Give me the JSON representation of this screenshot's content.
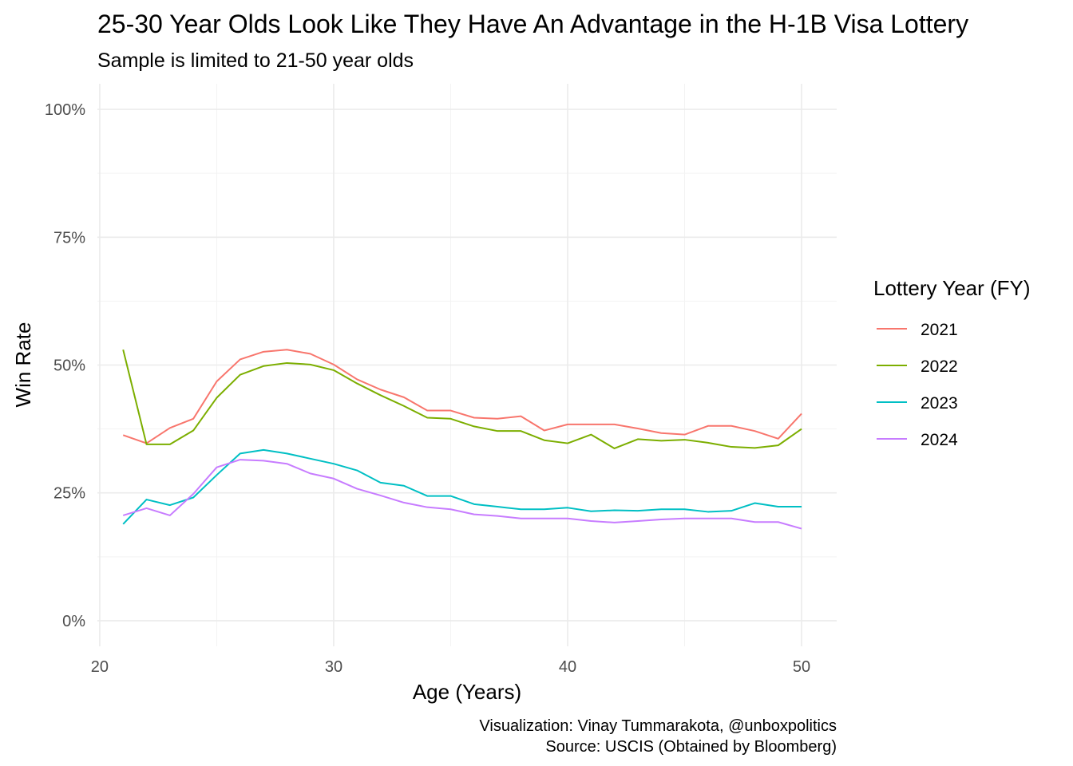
{
  "chart_data": {
    "type": "line",
    "title": "25-30 Year Olds Look Like They Have An Advantage in the H-1B Visa Lottery",
    "subtitle": "Sample is limited to 21-50 year olds",
    "xlabel": "Age (Years)",
    "ylabel": "Win Rate",
    "xlim": [
      19.9,
      51.5
    ],
    "ylim": [
      -0.05,
      1.05
    ],
    "x_ticks": [
      20,
      30,
      40,
      50
    ],
    "x_tick_labels": [
      "20",
      "30",
      "40",
      "50"
    ],
    "y_ticks": [
      0,
      0.25,
      0.5,
      0.75,
      1.0
    ],
    "y_tick_labels": [
      "0%",
      "25%",
      "50%",
      "75%",
      "100%"
    ],
    "grid": true,
    "legend": {
      "title": "Lottery Year (FY)",
      "placement": "right"
    },
    "x": [
      21,
      22,
      23,
      24,
      25,
      26,
      27,
      28,
      29,
      30,
      31,
      32,
      33,
      34,
      35,
      36,
      37,
      38,
      39,
      40,
      41,
      42,
      43,
      44,
      45,
      46,
      47,
      48,
      49,
      50
    ],
    "series": [
      {
        "name": "2021",
        "color": "#F8766D",
        "values": [
          0.363,
          0.347,
          0.377,
          0.395,
          0.468,
          0.511,
          0.526,
          0.53,
          0.522,
          0.501,
          0.472,
          0.452,
          0.437,
          0.411,
          0.411,
          0.397,
          0.395,
          0.4,
          0.372,
          0.384,
          0.384,
          0.384,
          0.376,
          0.367,
          0.364,
          0.381,
          0.381,
          0.371,
          0.356,
          0.405
        ]
      },
      {
        "name": "2022",
        "color": "#7CAE00",
        "values": [
          0.53,
          0.345,
          0.345,
          0.372,
          0.436,
          0.481,
          0.498,
          0.504,
          0.501,
          0.49,
          0.464,
          0.441,
          0.42,
          0.397,
          0.395,
          0.38,
          0.371,
          0.371,
          0.353,
          0.347,
          0.364,
          0.337,
          0.355,
          0.352,
          0.354,
          0.348,
          0.34,
          0.338,
          0.343,
          0.375
        ]
      },
      {
        "name": "2023",
        "color": "#00BFC4",
        "values": [
          0.189,
          0.237,
          0.226,
          0.241,
          0.285,
          0.327,
          0.334,
          0.327,
          0.317,
          0.307,
          0.294,
          0.27,
          0.264,
          0.244,
          0.244,
          0.228,
          0.223,
          0.218,
          0.218,
          0.221,
          0.214,
          0.216,
          0.215,
          0.218,
          0.218,
          0.213,
          0.215,
          0.23,
          0.223,
          0.223
        ]
      },
      {
        "name": "2024",
        "color": "#C77CFF",
        "values": [
          0.206,
          0.22,
          0.206,
          0.248,
          0.3,
          0.315,
          0.313,
          0.307,
          0.288,
          0.278,
          0.258,
          0.245,
          0.231,
          0.222,
          0.218,
          0.208,
          0.205,
          0.2,
          0.2,
          0.2,
          0.195,
          0.192,
          0.195,
          0.198,
          0.2,
          0.2,
          0.2,
          0.193,
          0.193,
          0.18
        ]
      }
    ],
    "caption": [
      "Visualization: Vinay Tummarakota, @unboxpolitics",
      "Source: USCIS (Obtained by Bloomberg)"
    ]
  }
}
